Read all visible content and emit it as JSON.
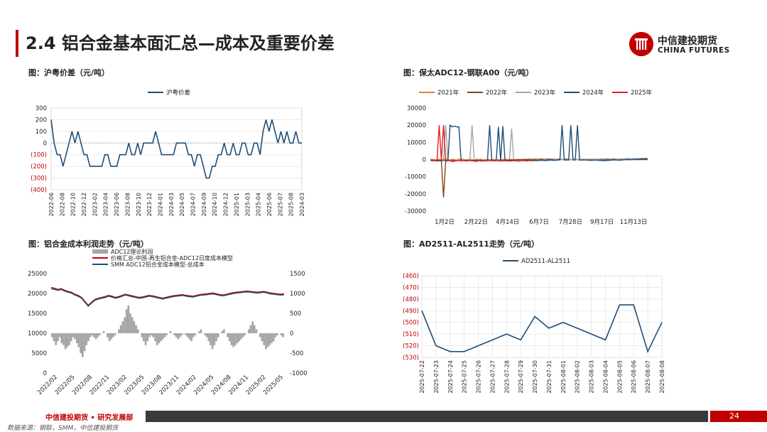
{
  "header": {
    "title": "2.4 铝合金基本面汇总—成本及重要价差",
    "logo_cn": "中信建投期货",
    "logo_en": "CHINA FUTURES"
  },
  "footer": {
    "org": "中信建投期货 • 研究发展部",
    "page": "24",
    "source": "数据来源：钢联，SMM，中信建投期货"
  },
  "colors": {
    "brand": "#c00000",
    "navy": "#1f4e79",
    "footer_dark": "#3a3a3a"
  },
  "chart_data": [
    {
      "id": "c1",
      "fig_title": "图：沪粤价差（元/吨）",
      "type": "line",
      "legend": [
        "沪粤价差"
      ],
      "ylim": [
        -400,
        300
      ],
      "yticks": [
        "300",
        "200",
        "100",
        "0",
        "(100)",
        "(200)",
        "(300)",
        "(400)"
      ],
      "xticks": [
        "2022-06",
        "2022-08",
        "2022-10",
        "2022-12",
        "2023-02",
        "2023-04",
        "2023-06",
        "2023-08",
        "2023-10",
        "2023-12",
        "2024-01",
        "2024-03",
        "2024-05",
        "2024-07",
        "2024-09",
        "2024-10",
        "2024-12",
        "2025-01",
        "2025-03",
        "2025-04",
        "2025-06",
        "2025-07",
        "2025-08",
        "2024-03"
      ],
      "series": [
        {
          "name": "沪粤价差",
          "color": "#1f4e79",
          "values": [
            200,
            0,
            -100,
            -100,
            -200,
            -100,
            0,
            100,
            0,
            100,
            0,
            -100,
            -100,
            -200,
            -200,
            -200,
            -200,
            -200,
            -100,
            -100,
            -200,
            -200,
            -200,
            -100,
            -100,
            -100,
            0,
            -100,
            -100,
            0,
            -100,
            0,
            0,
            0,
            0,
            100,
            0,
            -100,
            -100,
            -100,
            -100,
            -100,
            0,
            0,
            0,
            0,
            -100,
            -100,
            -200,
            -100,
            -100,
            -200,
            -300,
            -300,
            -200,
            -200,
            -100,
            -100,
            0,
            -100,
            -100,
            0,
            -100,
            -100,
            0,
            0,
            -100,
            -100,
            0,
            0,
            -100,
            100,
            200,
            100,
            200,
            100,
            0,
            100,
            0,
            100,
            0,
            0,
            100,
            0,
            0
          ]
        }
      ]
    },
    {
      "id": "c2",
      "fig_title": "图：保太ADC12-钢联A00（元/吨）",
      "type": "line",
      "ylim": [
        -30000,
        30000
      ],
      "yticks": [
        "30000",
        "20000",
        "10000",
        "0",
        "-10000",
        "-20000",
        "-30000"
      ],
      "xticks": [
        "1月2日",
        "2月22日",
        "4月14日",
        "6月7日",
        "7月28日",
        "9月17日",
        "11月13日"
      ],
      "series": [
        {
          "name": "2021年",
          "color": "#ed7d31",
          "values": [
            0,
            200,
            -500,
            0,
            300,
            -200,
            0,
            500,
            0,
            -300,
            200,
            0,
            -400,
            300,
            0,
            200,
            -200,
            0,
            300,
            0,
            -500,
            200,
            0,
            300,
            -200,
            0,
            0,
            0,
            0,
            0,
            0,
            0,
            0,
            0,
            0,
            0,
            0,
            0,
            0,
            0,
            0,
            0,
            0,
            0,
            0,
            0,
            0,
            0,
            0,
            0,
            0,
            0,
            0,
            0,
            0,
            0,
            0,
            0,
            0,
            0,
            0,
            0,
            0,
            0,
            0,
            0,
            0,
            0,
            0,
            0,
            0,
            0,
            0,
            0,
            0,
            0,
            0,
            0,
            0,
            0,
            0,
            0,
            0,
            0,
            0,
            0,
            0,
            0,
            0,
            0,
            0,
            0,
            0,
            0,
            0,
            0,
            0,
            0,
            0,
            0
          ]
        },
        {
          "name": "2022年",
          "color": "#8b4513",
          "values": [
            -500,
            -800,
            -600,
            -1000,
            -700,
            -900,
            -22000,
            -1000,
            -800,
            -600,
            -1200,
            -900,
            -700,
            -500,
            -800,
            -600,
            -900,
            -700,
            -500,
            -800,
            -900,
            -1100,
            -700,
            -600,
            -800,
            -900,
            -600,
            -500,
            -700,
            -800,
            -500,
            -600,
            -400,
            -500,
            -300,
            -400,
            -200,
            -300,
            -100,
            -200,
            0,
            -100,
            0,
            100,
            0,
            200,
            100,
            0,
            200,
            100,
            300,
            200,
            100,
            200,
            300,
            100,
            200,
            0,
            100,
            200,
            0,
            100,
            200,
            100,
            0,
            0,
            0,
            0,
            0,
            0,
            0,
            0,
            0,
            0,
            0,
            0,
            0,
            0,
            0,
            0,
            0,
            0,
            0,
            0,
            0,
            0,
            0,
            0,
            0,
            0,
            0,
            0,
            0,
            0,
            0,
            0,
            0,
            0,
            0,
            0
          ]
        },
        {
          "name": "2023年",
          "color": "#a6a6a6",
          "values": [
            0,
            -300,
            -500,
            -400,
            -600,
            -500,
            -400,
            20000,
            -600,
            -500,
            -400,
            -300,
            -500,
            -400,
            -600,
            -500,
            -300,
            -400,
            -500,
            20000,
            -400,
            -300,
            -500,
            -200,
            -400,
            -300,
            -500,
            -600,
            -400,
            -500,
            -300,
            -700,
            -600,
            -800,
            -700,
            -600,
            -500,
            18000,
            -800,
            -700,
            -600,
            -500,
            -700,
            -600,
            -500,
            -400,
            -500,
            -600,
            -400,
            -300,
            -500,
            -400,
            -300,
            -200,
            -400,
            -300,
            -200,
            -100,
            -300,
            -200,
            -100,
            0,
            -100,
            0,
            100,
            0,
            -100,
            0,
            100,
            200,
            100,
            0,
            200,
            300,
            200,
            100,
            300,
            200,
            400,
            300,
            500,
            400,
            300,
            500,
            400,
            300,
            200,
            400,
            300,
            500,
            600,
            500,
            400,
            600,
            500,
            400,
            600,
            700,
            600,
            500
          ]
        },
        {
          "name": "2024年",
          "color": "#1f4e79",
          "values": [
            -300,
            -500,
            -400,
            -600,
            -500,
            -700,
            -400,
            -600,
            -500,
            20000,
            19000,
            19500,
            19000,
            19000,
            -800,
            -700,
            -600,
            -500,
            -700,
            -600,
            -500,
            -400,
            -600,
            -500,
            -700,
            -600,
            -500,
            20000,
            -600,
            -500,
            -700,
            19000,
            -600,
            19500,
            -700,
            -600,
            -500,
            -700,
            -800,
            -700,
            -900,
            -800,
            -700,
            -600,
            -800,
            -700,
            -600,
            -500,
            -700,
            -600,
            -500,
            -400,
            -600,
            -500,
            -400,
            -300,
            -500,
            -400,
            -300,
            -200,
            20000,
            -300,
            -200,
            -300,
            20000,
            -200,
            -300,
            20000,
            -400,
            -300,
            -200,
            -300,
            -400,
            -500,
            -400,
            -300,
            -400,
            -500,
            -600,
            -700,
            -600,
            -500,
            -400,
            -300,
            -200,
            -300,
            -400,
            -300,
            -200,
            -100,
            0,
            -100,
            0,
            100,
            200,
            300,
            400,
            300,
            500,
            400
          ]
        },
        {
          "name": "2025年",
          "color": "#e02020",
          "values": [
            -300,
            -500,
            -400,
            -600,
            20000,
            -500,
            20000,
            -600,
            -500,
            -700,
            -600,
            -500,
            -800,
            -700,
            -600,
            -700,
            -800,
            -600,
            -700,
            -500,
            -800,
            -700,
            -600,
            -900,
            -800,
            -700,
            -600,
            -800,
            -700,
            -600,
            -700,
            -800,
            -900,
            -800,
            -700,
            -800,
            -900,
            -800,
            -700,
            -600,
            -700,
            -800,
            -700,
            -600,
            -500,
            -600,
            -700,
            -800
          ]
        }
      ]
    },
    {
      "id": "c3",
      "fig_title": "图：铝合金成本利润走势（元/吨）",
      "type": "line",
      "ylim_left": [
        0,
        25000
      ],
      "ylim_right": [
        -1000,
        1500
      ],
      "yticks_left": [
        "25000",
        "20000",
        "15000",
        "10000",
        "5000",
        "0"
      ],
      "yticks_right": [
        "1500",
        "1000",
        "500",
        "0",
        "-500",
        "-1000"
      ],
      "xticks": [
        "2022/02",
        "2022/05",
        "2022/08",
        "2022/11",
        "2023/02",
        "2023/05",
        "2023/08",
        "2023/11",
        "2024/02",
        "2024/05",
        "2024/08",
        "2024/11",
        "2025/02",
        "2025/05"
      ],
      "series": [
        {
          "name": "ADC12理论利润",
          "color": "#a6a6a6",
          "type": "area",
          "axis": "right",
          "values": [
            -100,
            -200,
            -300,
            -200,
            -100,
            -250,
            -300,
            -400,
            -350,
            -300,
            -200,
            -100,
            -150,
            -250,
            -350,
            -500,
            -600,
            -450,
            -300,
            -200,
            -100,
            -50,
            -100,
            -150,
            -100,
            -50,
            0,
            50,
            0,
            -100,
            -200,
            -150,
            -100,
            -50,
            0,
            100,
            200,
            300,
            400,
            600,
            700,
            500,
            400,
            300,
            200,
            100,
            0,
            -100,
            -200,
            -300,
            -200,
            -100,
            -50,
            -100,
            -200,
            -300,
            -250,
            -200,
            -150,
            -100,
            -50,
            0,
            50,
            0,
            -50,
            -100,
            -150,
            -100,
            -50,
            0,
            -50,
            -100,
            -150,
            -200,
            -100,
            -50,
            0,
            50,
            100,
            0,
            -50,
            -100,
            -200,
            -300,
            -400,
            -300,
            -200,
            -100,
            0,
            50,
            100,
            0,
            -100,
            -200,
            -300,
            -350,
            -300,
            -250,
            -200,
            -150,
            -100,
            -50,
            0,
            100,
            200,
            300,
            200,
            100,
            0,
            -100,
            -200,
            -300,
            -400,
            -350,
            -300,
            -250,
            -200,
            -100,
            -50,
            0,
            -50,
            -100
          ]
        },
        {
          "name": "价格汇总-中国-再生铝合金-ADC12日度成本模型",
          "color": "#c00000",
          "axis": "left",
          "values": [
            21500,
            21300,
            21000,
            21200,
            20800,
            20500,
            20300,
            19800,
            19500,
            19000,
            18000,
            17000,
            17800,
            18500,
            18800,
            19000,
            19200,
            19500,
            19300,
            19000,
            19200,
            19500,
            19800,
            19600,
            19400,
            19200,
            19000,
            19100,
            19300,
            19500,
            19400,
            19200,
            19000,
            18800,
            19000,
            19200,
            19400,
            19500,
            19600,
            19700,
            19500,
            19400,
            19300,
            19500,
            19700,
            19800,
            19900,
            20000,
            20100,
            19900,
            19700,
            19600,
            19800,
            20000,
            20200,
            20300,
            20400,
            20500,
            20600,
            20500,
            20400,
            20300,
            20400,
            20500,
            20300,
            20100,
            20000,
            19900,
            19800,
            19900
          ]
        },
        {
          "name": "SMM ADC12铝合金成本模型-总成本",
          "color": "#1f4e79",
          "axis": "left",
          "values": [
            21200,
            21000,
            20800,
            21000,
            20600,
            20300,
            20100,
            19600,
            19300,
            18800,
            17800,
            16800,
            17600,
            18300,
            18600,
            18800,
            19000,
            19300,
            19100,
            18800,
            19000,
            19300,
            19600,
            19400,
            19200,
            19000,
            18800,
            18900,
            19100,
            19300,
            19200,
            19000,
            18800,
            18600,
            18800,
            19000,
            19200,
            19300,
            19400,
            19500,
            19300,
            19200,
            19100,
            19300,
            19500,
            19600,
            19700,
            19800,
            19900,
            19700,
            19500,
            19400,
            19600,
            19800,
            20000,
            20100,
            20200,
            20300,
            20400,
            20300,
            20200,
            20100,
            20200,
            20300,
            20100,
            19900,
            19800,
            19700,
            19600,
            19700
          ]
        }
      ]
    },
    {
      "id": "c4",
      "fig_title": "图：AD2511-AL2511走势（元/吨）",
      "type": "line",
      "legend": [
        "AD2511-AL2511"
      ],
      "ylim": [
        -530,
        -460
      ],
      "yticks": [
        "(460)",
        "(470)",
        "(480)",
        "(490)",
        "(500)",
        "(510)",
        "(520)",
        "(530)"
      ],
      "categories": [
        "2025-07-22",
        "2025-07-23",
        "2025-07-24",
        "2025-07-25",
        "2025-07-26",
        "2025-07-27",
        "2025-07-28",
        "2025-07-29",
        "2025-07-30",
        "2025-07-31",
        "2025-08-01",
        "2025-08-02",
        "2025-08-03",
        "2025-08-04",
        "2025-08-05",
        "2025-08-06",
        "2025-08-07",
        "2025-08-08"
      ],
      "series": [
        {
          "name": "AD2511-AL2511",
          "color": "#1f4e79",
          "values": [
            -490,
            -520,
            -525,
            -525,
            -520,
            -515,
            -510,
            -515,
            -495,
            -505,
            -500,
            -505,
            -510,
            -515,
            -485,
            -485,
            -525,
            -500
          ]
        }
      ]
    }
  ]
}
